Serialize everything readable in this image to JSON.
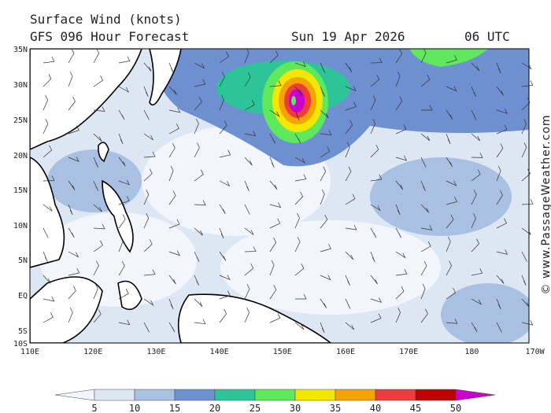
{
  "header": {
    "title": "Surface Wind (knots)",
    "subtitle": "GFS 096 Hour Forecast",
    "date": "Sun 19 Apr 2026",
    "time": "06 UTC"
  },
  "map": {
    "lat_labels": [
      "35N",
      "30N",
      "25N",
      "20N",
      "15N",
      "10N",
      "5N",
      "EQ",
      "5S",
      "10S"
    ],
    "lon_labels": [
      "110E",
      "120E",
      "130E",
      "140E",
      "150E",
      "160E",
      "170E",
      "180",
      "170W"
    ]
  },
  "colorbar": {
    "ticks": [
      5,
      10,
      15,
      20,
      25,
      30,
      35,
      40,
      45,
      50
    ],
    "colors": [
      "#f2f5fb",
      "#dde6f3",
      "#a9c0e2",
      "#6e90d0",
      "#2ec49a",
      "#5fe85c",
      "#f3e600",
      "#f5a300",
      "#ee3b3b",
      "#c20000",
      "#cc00cc"
    ]
  },
  "watermark": "© www.PassageWeather.com"
}
